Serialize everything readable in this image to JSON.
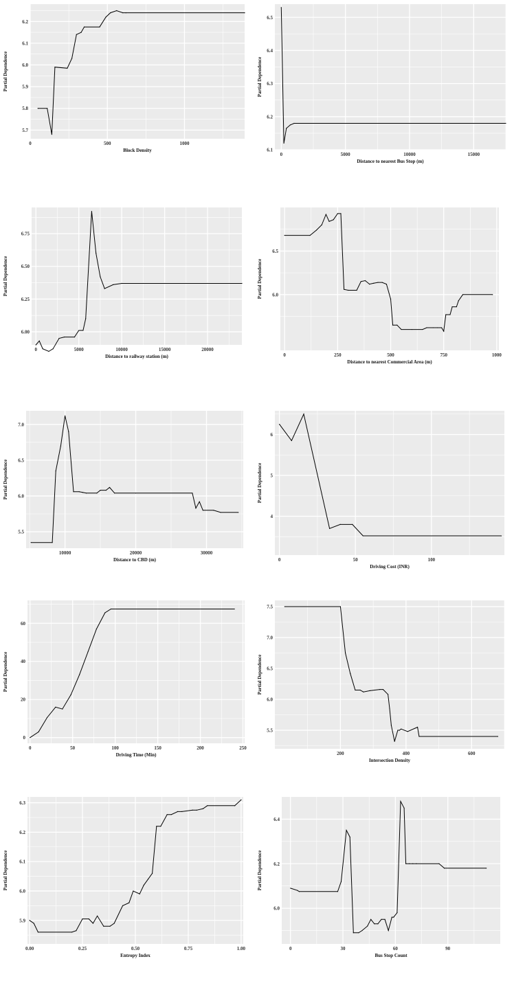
{
  "chart_data": [
    {
      "type": "line",
      "xlabel": "Block Density",
      "ylabel": "Partial Dependence",
      "xlim": [
        0,
        1390
      ],
      "ylim": [
        5.66,
        6.28
      ],
      "xticks": [
        0,
        500,
        1000
      ],
      "yticks": [
        5.7,
        5.8,
        5.9,
        6.0,
        6.1,
        6.2
      ],
      "ytick_labels": [
        "5.7",
        "5.8",
        "5.9",
        "6.0",
        "6.1",
        "6.2"
      ],
      "grid": true,
      "x": [
        50,
        110,
        140,
        160,
        240,
        270,
        300,
        330,
        350,
        450,
        490,
        520,
        560,
        600,
        620,
        1390
      ],
      "y": [
        5.8,
        5.8,
        5.68,
        5.99,
        5.985,
        6.03,
        6.14,
        6.15,
        6.175,
        6.175,
        6.22,
        6.24,
        6.25,
        6.24,
        6.24,
        6.24
      ]
    },
    {
      "type": "line",
      "xlabel": "Distance to nearest Bus Stop (m)",
      "ylabel": "Partial Dependence",
      "xlim": [
        -500,
        17500
      ],
      "ylim": [
        6.1,
        6.54
      ],
      "xticks": [
        0,
        5000,
        10000,
        15000
      ],
      "yticks": [
        6.1,
        6.2,
        6.3,
        6.4,
        6.5
      ],
      "ytick_labels": [
        "6.1",
        "6.2",
        "6.3",
        "6.4",
        "6.5"
      ],
      "grid": true,
      "x": [
        0,
        200,
        400,
        700,
        1000,
        17500
      ],
      "y": [
        6.53,
        6.12,
        6.165,
        6.175,
        6.18,
        6.18
      ]
    },
    {
      "type": "line",
      "xlabel": "Distance to railway station (m)",
      "ylabel": "Partial Dependence",
      "xlim": [
        -500,
        24000
      ],
      "ylim": [
        5.9,
        6.95
      ],
      "xticks": [
        0,
        5000,
        10000,
        15000,
        20000
      ],
      "yticks": [
        6.0,
        6.25,
        6.5,
        6.75
      ],
      "ytick_labels": [
        "6.00",
        "6.25",
        "6.50",
        "6.75"
      ],
      "grid": true,
      "x": [
        0,
        400,
        800,
        1500,
        2000,
        2700,
        3300,
        4500,
        5000,
        5500,
        5800,
        6500,
        7000,
        7500,
        8000,
        9000,
        10000,
        24000
      ],
      "y": [
        5.9,
        5.93,
        5.87,
        5.85,
        5.87,
        5.95,
        5.96,
        5.96,
        6.01,
        6.01,
        6.1,
        6.92,
        6.6,
        6.42,
        6.33,
        6.36,
        6.37,
        6.37
      ]
    },
    {
      "type": "line",
      "xlabel": "Distance to nearest Commercial Area (m)",
      "ylabel": "Partial Dependence",
      "xlim": [
        -20,
        1010
      ],
      "ylim": [
        5.36,
        7.0
      ],
      "xticks": [
        0,
        250,
        500,
        750,
        1000
      ],
      "yticks": [
        6.0,
        6.5
      ],
      "ytick_labels": [
        "6.0",
        "6.5"
      ],
      "grid": true,
      "x": [
        0,
        120,
        150,
        175,
        195,
        210,
        230,
        250,
        265,
        280,
        300,
        340,
        360,
        380,
        400,
        420,
        440,
        460,
        480,
        500,
        510,
        530,
        550,
        600,
        650,
        670,
        700,
        720,
        740,
        750,
        760,
        780,
        790,
        810,
        820,
        840,
        980
      ],
      "y": [
        6.68,
        6.68,
        6.74,
        6.8,
        6.92,
        6.84,
        6.86,
        6.93,
        6.93,
        6.06,
        6.05,
        6.05,
        6.15,
        6.16,
        6.12,
        6.13,
        6.14,
        6.14,
        6.12,
        5.95,
        5.65,
        5.65,
        5.6,
        5.6,
        5.6,
        5.62,
        5.62,
        5.62,
        5.62,
        5.58,
        5.77,
        5.77,
        5.86,
        5.86,
        5.93,
        6.0,
        6.0
      ]
    },
    {
      "type": "line",
      "xlabel": "Distance to CBD (m)",
      "ylabel": "Partial Dependence",
      "xlim": [
        4500,
        35200
      ],
      "ylim": [
        5.27,
        7.19
      ],
      "xticks": [
        10000,
        20000,
        30000
      ],
      "yticks": [
        5.5,
        6.0,
        6.5,
        7.0
      ],
      "ytick_labels": [
        "5.5",
        "6.0",
        "6.5",
        "7.0"
      ],
      "grid": true,
      "x": [
        5200,
        8200,
        8700,
        9400,
        10000,
        10500,
        11200,
        12000,
        12500,
        13000,
        14500,
        15000,
        15800,
        16300,
        17000,
        20000,
        28000,
        28500,
        29000,
        29500,
        31000,
        32000,
        34500
      ],
      "y": [
        5.35,
        5.35,
        6.35,
        6.7,
        7.12,
        6.9,
        6.06,
        6.06,
        6.05,
        6.04,
        6.04,
        6.08,
        6.08,
        6.12,
        6.04,
        6.04,
        6.04,
        5.83,
        5.92,
        5.8,
        5.8,
        5.77,
        5.77
      ]
    },
    {
      "type": "line",
      "xlabel": "Driving Cost (INR)",
      "ylabel": "Partial Dependence",
      "xlim": [
        -3,
        148
      ],
      "ylim": [
        3.05,
        6.58
      ],
      "xticks": [
        0,
        50,
        100
      ],
      "yticks": [
        4,
        5,
        6
      ],
      "ytick_labels": [
        "4",
        "5",
        "6"
      ],
      "grid": true,
      "x": [
        0,
        8,
        16,
        33,
        40,
        48,
        55,
        146
      ],
      "y": [
        6.25,
        5.85,
        6.5,
        3.7,
        3.8,
        3.8,
        3.52,
        3.52
      ]
    },
    {
      "type": "line",
      "xlabel": "Driving Time (Min)",
      "ylabel": "Partial Dependence",
      "xlim": [
        -3,
        252
      ],
      "ylim": [
        -3,
        72
      ],
      "xticks": [
        0,
        50,
        100,
        150,
        200,
        250
      ],
      "yticks": [
        0,
        20,
        40,
        60
      ],
      "ytick_labels": [
        "0",
        "20",
        "40",
        "60"
      ],
      "grid": true,
      "x": [
        0,
        10,
        20,
        30,
        38,
        48,
        58,
        68,
        78,
        88,
        95,
        240
      ],
      "y": [
        0,
        3,
        10.5,
        16,
        15,
        22.5,
        33,
        45,
        57,
        65.5,
        67.5,
        67.5
      ]
    },
    {
      "type": "line",
      "xlabel": "Intersection Density",
      "ylabel": "Partial Dependence",
      "xlim": [
        0,
        700
      ],
      "ylim": [
        5.2,
        7.6
      ],
      "xticks": [
        200,
        400,
        600
      ],
      "yticks": [
        5.5,
        6.0,
        6.5,
        7.0,
        7.5
      ],
      "ytick_labels": [
        "5.5",
        "6.0",
        "6.5",
        "7.0",
        "7.5"
      ],
      "grid": true,
      "x": [
        30,
        200,
        215,
        230,
        245,
        260,
        270,
        290,
        320,
        330,
        345,
        350,
        355,
        365,
        375,
        380,
        385,
        405,
        435,
        440,
        680
      ],
      "y": [
        7.5,
        7.5,
        6.75,
        6.42,
        6.15,
        6.15,
        6.12,
        6.14,
        6.16,
        6.16,
        6.08,
        5.85,
        5.58,
        5.32,
        5.5,
        5.5,
        5.52,
        5.48,
        5.55,
        5.4,
        5.4
      ]
    },
    {
      "type": "line",
      "xlabel": "Entropy Index",
      "ylabel": "Partial Dependence",
      "xlim": [
        -0.01,
        1.01
      ],
      "ylim": [
        5.82,
        6.32
      ],
      "xticks": [
        0.0,
        0.25,
        0.5,
        0.75,
        1.0
      ],
      "xtick_labels": [
        "0.00",
        "0.25",
        "0.50",
        "0.75",
        "1.00"
      ],
      "yticks": [
        5.9,
        6.0,
        6.1,
        6.2,
        6.3
      ],
      "ytick_labels": [
        "5.9",
        "6.0",
        "6.1",
        "6.2",
        "6.3"
      ],
      "grid": true,
      "x": [
        0.0,
        0.02,
        0.04,
        0.2,
        0.22,
        0.25,
        0.28,
        0.3,
        0.32,
        0.35,
        0.38,
        0.4,
        0.44,
        0.47,
        0.49,
        0.52,
        0.54,
        0.56,
        0.58,
        0.6,
        0.62,
        0.65,
        0.67,
        0.7,
        0.72,
        0.77,
        0.79,
        0.82,
        0.84,
        0.97,
        1.0
      ],
      "y": [
        5.9,
        5.89,
        5.86,
        5.86,
        5.865,
        5.905,
        5.905,
        5.89,
        5.915,
        5.88,
        5.88,
        5.89,
        5.95,
        5.96,
        6.0,
        5.99,
        6.02,
        6.04,
        6.06,
        6.22,
        6.22,
        6.26,
        6.26,
        6.27,
        6.27,
        6.275,
        6.275,
        6.28,
        6.29,
        6.29,
        6.31
      ]
    },
    {
      "type": "line",
      "xlabel": "Bus Stop Count",
      "ylabel": "Partial Dependence",
      "xlim": [
        -5,
        120
      ],
      "ylim": [
        5.84,
        6.5
      ],
      "xticks": [
        0,
        30,
        60,
        90
      ],
      "yticks": [
        6.0,
        6.2,
        6.4
      ],
      "ytick_labels": [
        "6.0",
        "6.2",
        "6.4"
      ],
      "grid": true,
      "x": [
        0,
        4,
        5,
        27,
        29,
        32,
        34,
        36,
        39,
        41,
        44,
        46,
        48,
        50,
        52,
        54,
        56,
        58,
        59,
        61,
        63,
        65,
        66,
        68,
        70,
        72,
        85,
        88,
        112
      ],
      "y": [
        6.09,
        6.08,
        6.075,
        6.075,
        6.12,
        6.35,
        6.32,
        5.89,
        5.89,
        5.9,
        5.92,
        5.95,
        5.93,
        5.93,
        5.95,
        5.95,
        5.9,
        5.96,
        5.96,
        5.98,
        6.48,
        6.45,
        6.2,
        6.2,
        6.2,
        6.2,
        6.2,
        6.18,
        6.18
      ]
    }
  ]
}
